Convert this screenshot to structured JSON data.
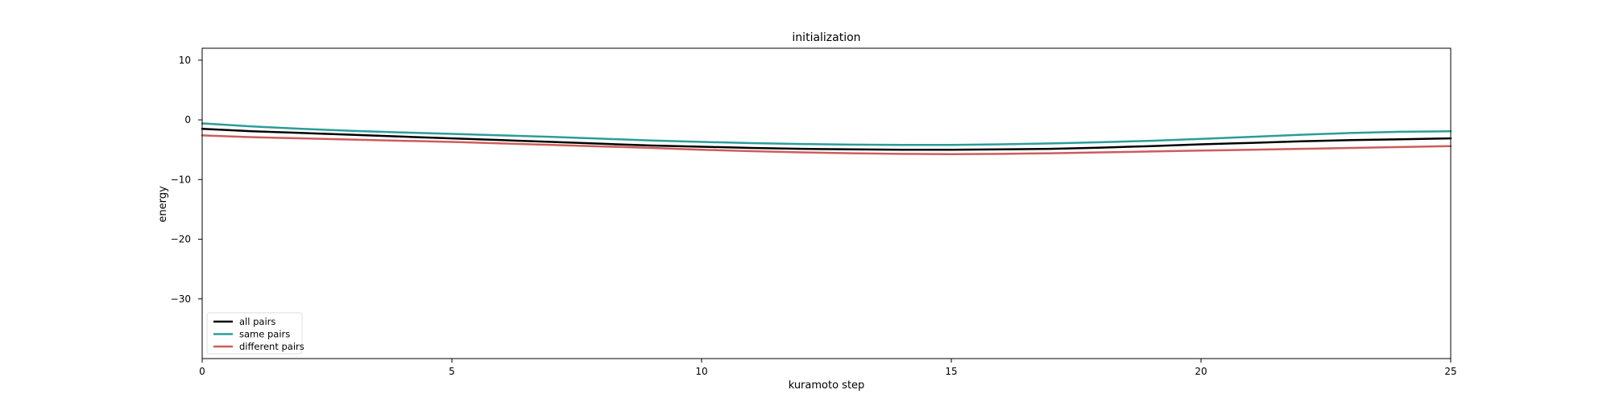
{
  "chart_data": {
    "type": "line",
    "title": "initialization",
    "xlabel": "kuramoto step",
    "ylabel": "energy",
    "xlim": [
      0,
      25
    ],
    "ylim": [
      -40,
      12
    ],
    "xticks": [
      0,
      5,
      10,
      15,
      20,
      25
    ],
    "yticks": [
      10,
      0,
      -10,
      -20,
      -30
    ],
    "xtick_labels": [
      "0",
      "5",
      "10",
      "15",
      "20",
      "25"
    ],
    "ytick_labels": [
      "10",
      "0",
      "−10",
      "−20",
      "−30"
    ],
    "grid": false,
    "legend_position": "lower-left",
    "x": [
      0,
      1,
      2,
      3,
      4,
      5,
      6,
      7,
      8,
      9,
      10,
      11,
      12,
      13,
      14,
      15,
      16,
      17,
      18,
      19,
      20,
      21,
      22,
      23,
      24,
      25
    ],
    "series": [
      {
        "name": "all pairs",
        "color": "#000000",
        "values": [
          -1.5,
          -1.9,
          -2.2,
          -2.5,
          -2.8,
          -3.1,
          -3.4,
          -3.7,
          -4.0,
          -4.3,
          -4.5,
          -4.7,
          -4.85,
          -4.95,
          -5.0,
          -5.0,
          -4.95,
          -4.85,
          -4.65,
          -4.4,
          -4.1,
          -3.85,
          -3.6,
          -3.4,
          -3.25,
          -3.1
        ]
      },
      {
        "name": "same pairs",
        "color": "#2a9d9a",
        "values": [
          -0.6,
          -1.1,
          -1.5,
          -1.85,
          -2.1,
          -2.35,
          -2.6,
          -2.85,
          -3.15,
          -3.45,
          -3.7,
          -3.9,
          -4.05,
          -4.15,
          -4.2,
          -4.2,
          -4.1,
          -3.95,
          -3.75,
          -3.5,
          -3.2,
          -2.85,
          -2.5,
          -2.2,
          -2.0,
          -1.9
        ]
      },
      {
        "name": "different pairs",
        "color": "#cd5c5c",
        "values": [
          -2.6,
          -2.9,
          -3.1,
          -3.3,
          -3.5,
          -3.7,
          -3.95,
          -4.2,
          -4.45,
          -4.7,
          -5.0,
          -5.25,
          -5.45,
          -5.6,
          -5.7,
          -5.75,
          -5.7,
          -5.6,
          -5.45,
          -5.3,
          -5.15,
          -5.0,
          -4.85,
          -4.7,
          -4.55,
          -4.4
        ]
      }
    ]
  }
}
